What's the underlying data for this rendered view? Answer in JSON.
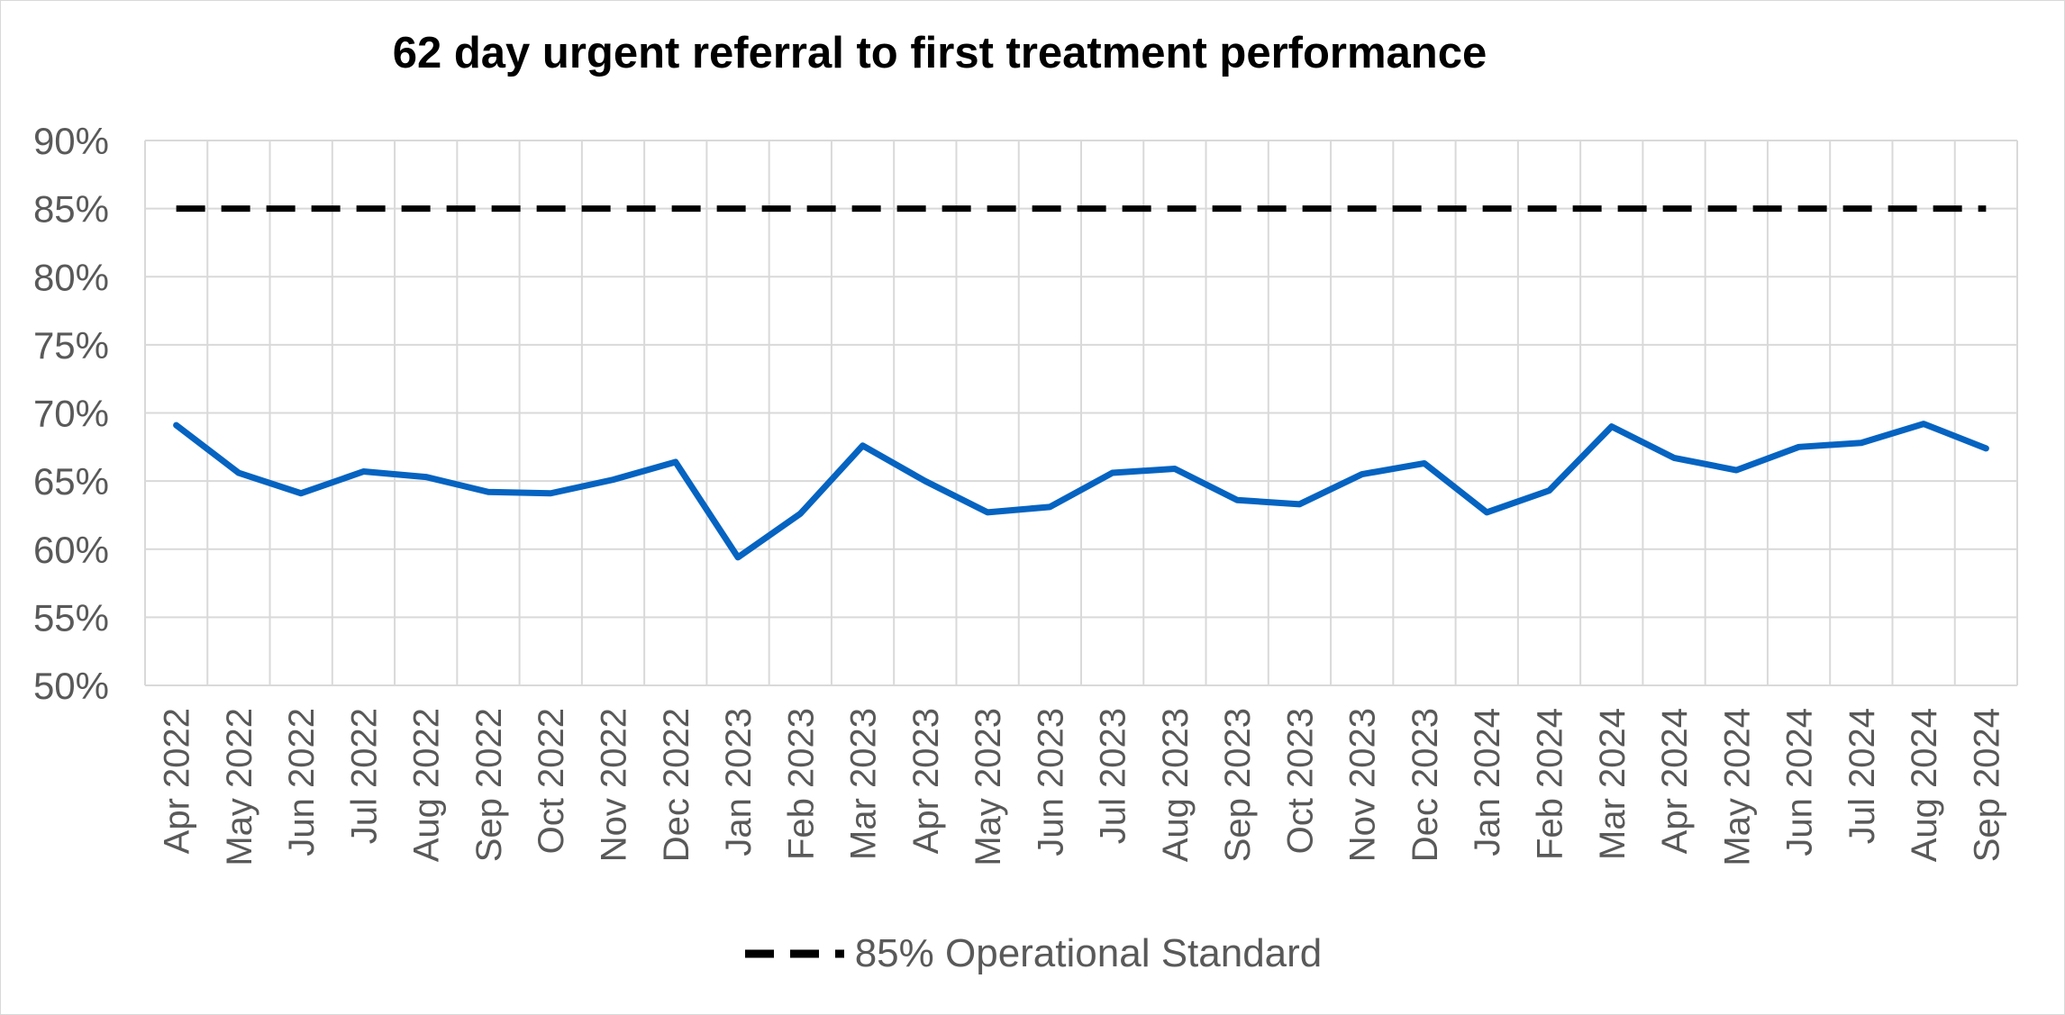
{
  "chart_data": {
    "type": "line",
    "title": "62 day urgent referral to first treatment performance",
    "xlabel": "",
    "ylabel": "",
    "categories": [
      "Apr 2022",
      "May 2022",
      "Jun 2022",
      "Jul 2022",
      "Aug 2022",
      "Sep 2022",
      "Oct 2022",
      "Nov 2022",
      "Dec 2022",
      "Jan 2023",
      "Feb 2023",
      "Mar 2023",
      "Apr 2023",
      "May 2023",
      "Jun 2023",
      "Jul 2023",
      "Aug 2023",
      "Sep 2023",
      "Oct 2023",
      "Nov 2023",
      "Dec 2023",
      "Jan 2024",
      "Feb 2024",
      "Mar 2024",
      "Apr 2024",
      "May 2024",
      "Jun 2024",
      "Jul 2024",
      "Aug 2024",
      "Sep 2024"
    ],
    "yticks": [
      "50%",
      "55%",
      "60%",
      "65%",
      "70%",
      "75%",
      "80%",
      "85%",
      "90%"
    ],
    "ylim": [
      50,
      90
    ],
    "grid": true,
    "legend_position": "bottom",
    "series": [
      {
        "values": [
          69.1,
          65.6,
          64.1,
          65.7,
          65.3,
          64.2,
          64.1,
          65.1,
          66.4,
          59.4,
          62.6,
          67.6,
          65.0,
          62.7,
          63.1,
          65.6,
          65.9,
          63.6,
          63.3,
          65.5,
          66.3,
          62.7,
          64.3,
          69.0,
          66.7,
          65.8,
          67.5,
          67.8,
          69.2,
          67.4
        ],
        "color": "#0563C1",
        "style": "solid"
      },
      {
        "name": "85% Operational Standard",
        "values": [
          85,
          85,
          85,
          85,
          85,
          85,
          85,
          85,
          85,
          85,
          85,
          85,
          85,
          85,
          85,
          85,
          85,
          85,
          85,
          85,
          85,
          85,
          85,
          85,
          85,
          85,
          85,
          85,
          85,
          85
        ],
        "color": "#000000",
        "style": "dashed"
      }
    ]
  },
  "legend": {
    "label": "85% Operational Standard"
  }
}
